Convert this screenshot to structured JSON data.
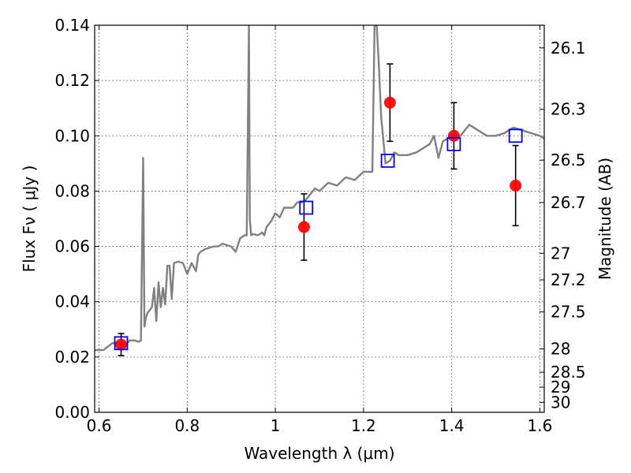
{
  "chart_data": {
    "type": "scatter",
    "xlabel": "Wavelength  λ (μm)",
    "ylabel": "Flux  Fν  ( μJy )",
    "y2label": "Magnitude (AB)",
    "xlim": [
      0.59,
      1.61
    ],
    "ylim": [
      0.0,
      0.14
    ],
    "xticks": [
      0.6,
      0.8,
      1.0,
      1.2,
      1.4,
      1.6
    ],
    "xtick_labels": [
      "0.6",
      "0.8",
      "1",
      "1.2",
      "1.4",
      "1.6"
    ],
    "yticks": [
      0.0,
      0.02,
      0.04,
      0.06,
      0.08,
      0.1,
      0.12,
      0.14
    ],
    "ytick_labels": [
      "0.00",
      "0.02",
      "0.04",
      "0.06",
      "0.08",
      "0.10",
      "0.12",
      "0.14"
    ],
    "y2_ticks": [
      {
        "label": "26.1",
        "flux": 0.1318
      },
      {
        "label": "26.3",
        "flux": 0.1096
      },
      {
        "label": "26.5",
        "flux": 0.0912
      },
      {
        "label": "26.7",
        "flux": 0.0759
      },
      {
        "label": "27",
        "flux": 0.0575
      },
      {
        "label": "27.2",
        "flux": 0.0479
      },
      {
        "label": "27.5",
        "flux": 0.0363
      },
      {
        "label": "28",
        "flux": 0.0229
      },
      {
        "label": "28.5",
        "flux": 0.0145
      },
      {
        "label": "29",
        "flux": 0.0091
      },
      {
        "label": "30",
        "flux": 0.0036
      }
    ],
    "grid": true,
    "series": [
      {
        "kind": "line",
        "color": "#808080",
        "x": [
          0.59,
          0.61,
          0.63,
          0.64,
          0.66,
          0.67,
          0.68,
          0.69,
          0.695,
          0.7,
          0.703,
          0.706,
          0.71,
          0.72,
          0.725,
          0.73,
          0.735,
          0.74,
          0.745,
          0.75,
          0.755,
          0.76,
          0.765,
          0.77,
          0.78,
          0.79,
          0.8,
          0.81,
          0.82,
          0.825,
          0.83,
          0.84,
          0.86,
          0.87,
          0.88,
          0.9,
          0.91,
          0.92,
          0.93,
          0.935,
          0.94,
          0.942,
          0.945,
          0.95,
          0.96,
          0.97,
          0.975,
          0.98,
          0.99,
          1.0,
          1.01,
          1.02,
          1.04,
          1.05,
          1.06,
          1.07,
          1.08,
          1.09,
          1.1,
          1.12,
          1.14,
          1.16,
          1.18,
          1.2,
          1.22,
          1.225,
          1.23,
          1.235,
          1.24,
          1.25,
          1.26,
          1.27,
          1.28,
          1.3,
          1.32,
          1.34,
          1.35,
          1.36,
          1.37,
          1.38,
          1.4,
          1.42,
          1.44,
          1.46,
          1.48,
          1.5,
          1.52,
          1.54,
          1.56,
          1.58,
          1.6,
          1.61
        ],
        "y": [
          0.0225,
          0.0225,
          0.025,
          0.025,
          0.0245,
          0.026,
          0.026,
          0.0255,
          0.026,
          0.092,
          0.031,
          0.034,
          0.036,
          0.038,
          0.045,
          0.033,
          0.047,
          0.038,
          0.045,
          0.039,
          0.053,
          0.053,
          0.041,
          0.054,
          0.0545,
          0.054,
          0.05,
          0.054,
          0.051,
          0.057,
          0.058,
          0.059,
          0.06,
          0.06,
          0.061,
          0.06,
          0.058,
          0.063,
          0.064,
          0.064,
          0.14,
          0.07,
          0.064,
          0.0645,
          0.064,
          0.065,
          0.064,
          0.067,
          0.069,
          0.072,
          0.0705,
          0.074,
          0.074,
          0.076,
          0.076,
          0.077,
          0.079,
          0.081,
          0.08,
          0.083,
          0.082,
          0.085,
          0.084,
          0.087,
          0.087,
          0.14,
          0.14,
          0.125,
          0.107,
          0.09,
          0.091,
          0.094,
          0.093,
          0.093,
          0.094,
          0.096,
          0.097,
          0.1,
          0.092,
          0.098,
          0.1,
          0.1,
          0.104,
          0.102,
          0.1,
          0.1,
          0.101,
          0.103,
          0.102,
          0.101,
          0.1,
          0.099
        ]
      },
      {
        "kind": "errorbar",
        "color": "#ff0000",
        "x": [
          0.65,
          1.065,
          1.26,
          1.405,
          1.545
        ],
        "y": [
          0.0245,
          0.067,
          0.112,
          0.1,
          0.082
        ],
        "yerr": [
          0.004,
          0.012,
          0.014,
          0.012,
          0.0145
        ]
      },
      {
        "kind": "scatter",
        "marker": "open-square",
        "color": "#0000ff",
        "x": [
          0.65,
          1.07,
          1.255,
          1.405,
          1.545
        ],
        "y": [
          0.025,
          0.074,
          0.091,
          0.097,
          0.1
        ]
      }
    ]
  }
}
